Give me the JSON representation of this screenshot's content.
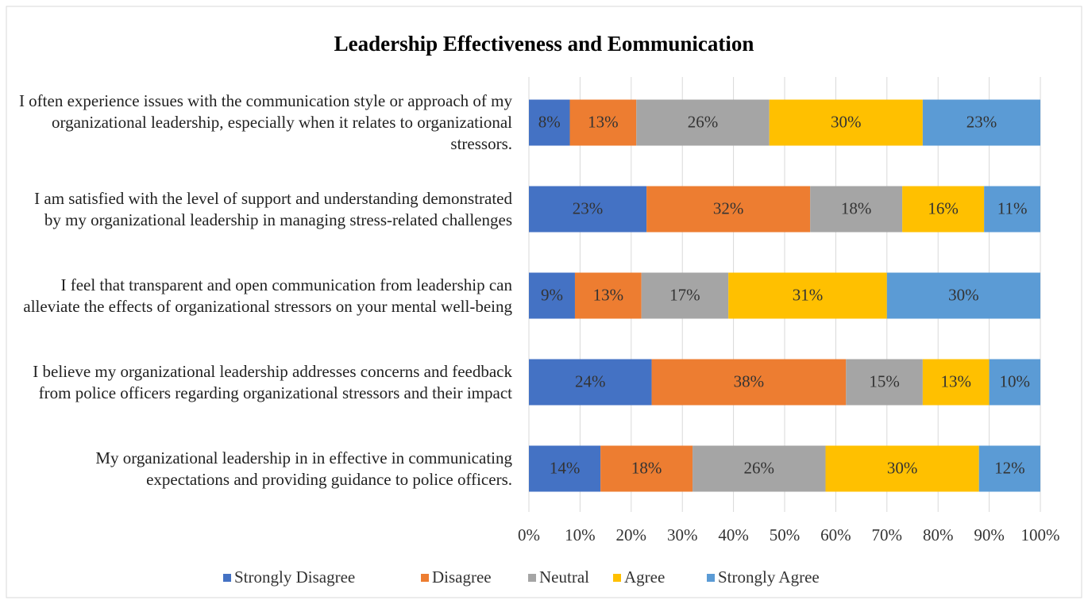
{
  "chart_data": {
    "type": "stacked_bar_horizontal",
    "title": "Leadership Effectiveness and Eommunication",
    "categories": [
      "I often experience issues with the communication style or approach of my organizational leadership, especially when it relates to organizational stressors.",
      "I am satisfied with the level of support and understanding demonstrated by my organizational leadership in managing stress-related challenges",
      "I feel that transparent and open communication from leadership can alleviate the effects of organizational stressors on your mental well-being",
      "I believe my organizational leadership addresses concerns and feedback from police officers regarding organizational stressors and their impact",
      "My organizational leadership in in effective in communicating expectations and providing guidance to police officers."
    ],
    "series": [
      {
        "name": "Strongly Disagree",
        "color": "#4472c4",
        "values": [
          8,
          23,
          9,
          24,
          14
        ],
        "value_labels": [
          "8%",
          "23%",
          "9%",
          "24%",
          "14%"
        ]
      },
      {
        "name": "Disagree",
        "color": "#ed7d31",
        "values": [
          13,
          32,
          13,
          38,
          18
        ],
        "value_labels": [
          "13%",
          "32%",
          "13%",
          "38%",
          "18%"
        ]
      },
      {
        "name": "Neutral",
        "color": "#a5a5a5",
        "values": [
          26,
          18,
          17,
          15,
          26
        ],
        "value_labels": [
          "26%",
          "18%",
          "17%",
          "15%",
          "26%"
        ]
      },
      {
        "name": "Agree",
        "color": "#ffc000",
        "values": [
          30,
          16,
          31,
          13,
          30
        ],
        "value_labels": [
          "30%",
          "16%",
          "31%",
          "13%",
          "30%"
        ]
      },
      {
        "name": "Strongly Agree",
        "color": "#5b9bd5",
        "values": [
          23,
          11,
          30,
          10,
          12
        ],
        "value_labels": [
          "23%",
          "11%",
          "30%",
          "10%",
          "12%"
        ]
      }
    ],
    "xlim": [
      0,
      100
    ],
    "xticks": [
      {
        "value": 0,
        "label": "0%"
      },
      {
        "value": 10,
        "label": "10%"
      },
      {
        "value": 20,
        "label": "20%"
      },
      {
        "value": 30,
        "label": "30%"
      },
      {
        "value": 40,
        "label": "40%"
      },
      {
        "value": 50,
        "label": "50%"
      },
      {
        "value": 60,
        "label": "60%"
      },
      {
        "value": 70,
        "label": "70%"
      },
      {
        "value": 80,
        "label": "80%"
      },
      {
        "value": 90,
        "label": "90%"
      },
      {
        "value": 100,
        "label": "100%"
      }
    ],
    "grid": true,
    "legend": "bottom"
  }
}
